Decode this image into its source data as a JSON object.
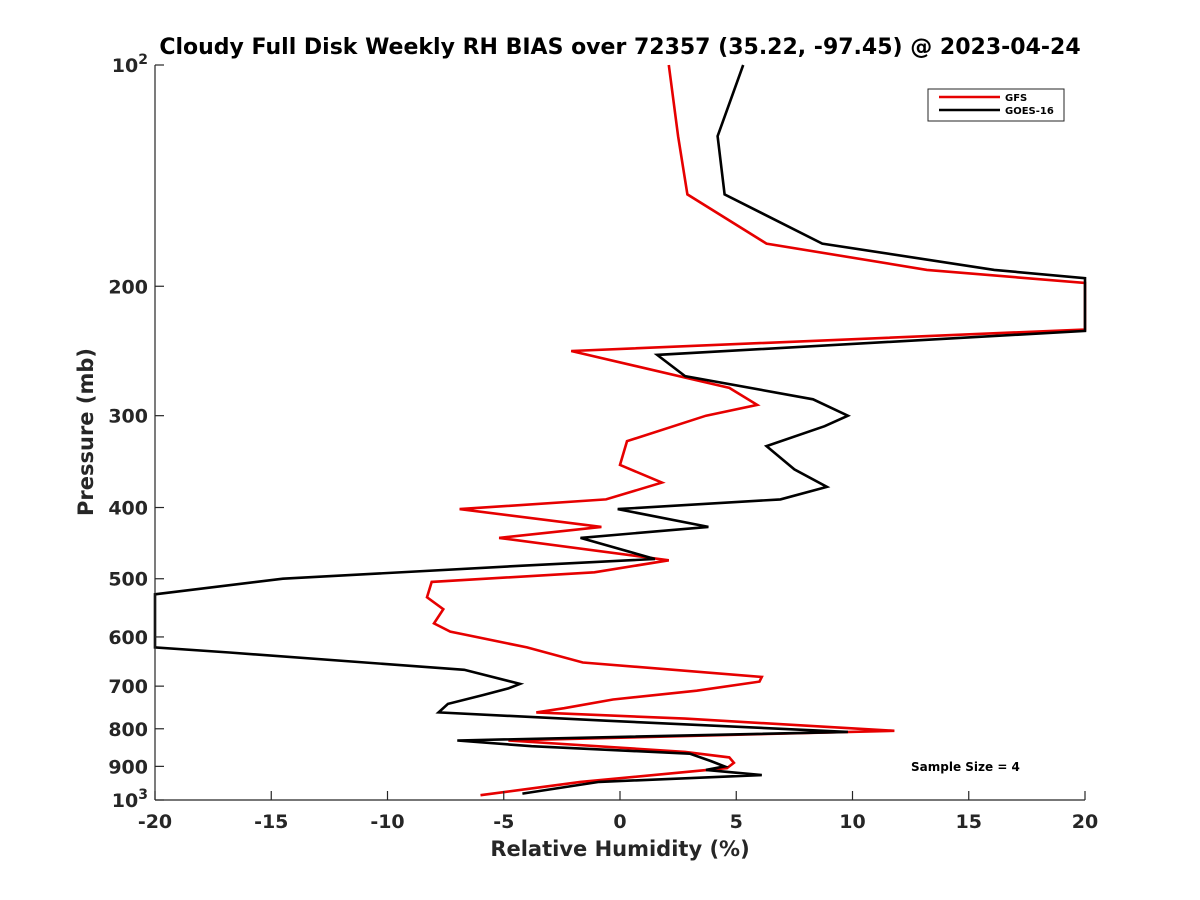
{
  "chart_data": {
    "type": "line",
    "title": "Cloudy Full Disk Weekly RH BIAS over 72357 (35.22, -97.45) @ 2023-04-24",
    "xlabel": "Relative Humidity (%)",
    "ylabel": "Pressure (mb)",
    "xlim": [
      -20,
      20
    ],
    "ylim": [
      100,
      1000
    ],
    "y_scale": "log",
    "y_reversed": true,
    "grid": false,
    "legend_position": "top-right",
    "x_ticks": [
      "-20",
      "-15",
      "-10",
      "-5",
      "0",
      "5",
      "10",
      "15",
      "20"
    ],
    "y_ticks": [
      {
        "value": 100,
        "base": "10",
        "exp": "2"
      },
      {
        "value": 200,
        "label": "200"
      },
      {
        "value": 300,
        "label": "300"
      },
      {
        "value": 400,
        "label": "400"
      },
      {
        "value": 500,
        "label": "500"
      },
      {
        "value": 600,
        "label": "600"
      },
      {
        "value": 700,
        "label": "700"
      },
      {
        "value": 800,
        "label": "800"
      },
      {
        "value": 900,
        "label": "900"
      },
      {
        "value": 1000,
        "base": "10",
        "exp": "3"
      }
    ],
    "series": [
      {
        "name": "GFS",
        "color": "#e60000",
        "points": [
          [
            2.1,
            100
          ],
          [
            2.5,
            125
          ],
          [
            2.9,
            150
          ],
          [
            6.3,
            175
          ],
          [
            13.2,
            190
          ],
          [
            20,
            198
          ],
          [
            20,
            229
          ],
          [
            -2.1,
            245
          ],
          [
            4.7,
            275
          ],
          [
            5.9,
            290
          ],
          [
            3.7,
            300
          ],
          [
            0.3,
            325
          ],
          [
            0.0,
            350
          ],
          [
            1.8,
            370
          ],
          [
            -0.6,
            390
          ],
          [
            -6.9,
            402
          ],
          [
            -0.8,
            425
          ],
          [
            -5.2,
            440
          ],
          [
            2.1,
            472
          ],
          [
            -1.1,
            490
          ],
          [
            -8.1,
            505
          ],
          [
            -8.3,
            530
          ],
          [
            -7.6,
            550
          ],
          [
            -8.0,
            575
          ],
          [
            -7.3,
            590
          ],
          [
            -4.0,
            620
          ],
          [
            -1.6,
            650
          ],
          [
            6.1,
            680
          ],
          [
            6.0,
            690
          ],
          [
            3.3,
            710
          ],
          [
            -0.3,
            730
          ],
          [
            -2.4,
            750
          ],
          [
            -3.6,
            760
          ],
          [
            2.8,
            775
          ],
          [
            11.8,
            805
          ],
          [
            -4.8,
            830
          ],
          [
            2.8,
            860
          ],
          [
            4.7,
            875
          ],
          [
            4.9,
            890
          ],
          [
            4.6,
            905
          ],
          [
            -1.7,
            945
          ],
          [
            -6.0,
            985
          ]
        ]
      },
      {
        "name": "GOES-16",
        "color": "#000000",
        "points": [
          [
            5.3,
            100
          ],
          [
            4.2,
            125
          ],
          [
            4.5,
            150
          ],
          [
            8.7,
            175
          ],
          [
            16.1,
            190
          ],
          [
            20,
            195
          ],
          [
            20,
            230
          ],
          [
            1.6,
            248
          ],
          [
            2.8,
            265
          ],
          [
            8.3,
            285
          ],
          [
            9.8,
            300
          ],
          [
            8.8,
            310
          ],
          [
            6.3,
            330
          ],
          [
            7.5,
            355
          ],
          [
            8.9,
            375
          ],
          [
            6.9,
            390
          ],
          [
            -0.1,
            402
          ],
          [
            3.8,
            425
          ],
          [
            -1.7,
            440
          ],
          [
            1.5,
            470
          ],
          [
            -4.2,
            480
          ],
          [
            -14.5,
            500
          ],
          [
            -20,
            525
          ],
          [
            -20,
            620
          ],
          [
            -16.8,
            630
          ],
          [
            -6.7,
            665
          ],
          [
            -4.3,
            695
          ],
          [
            -4.8,
            705
          ],
          [
            -5.9,
            720
          ],
          [
            -7.4,
            740
          ],
          [
            -7.8,
            760
          ],
          [
            -0.6,
            780
          ],
          [
            9.8,
            808
          ],
          [
            -7.0,
            830
          ],
          [
            -3.8,
            845
          ],
          [
            3.0,
            865
          ],
          [
            3.9,
            885
          ],
          [
            4.5,
            900
          ],
          [
            3.7,
            910
          ],
          [
            6.1,
            925
          ],
          [
            -0.9,
            945
          ],
          [
            -4.2,
            980
          ]
        ]
      }
    ],
    "annotation": "Sample Size = 4"
  }
}
